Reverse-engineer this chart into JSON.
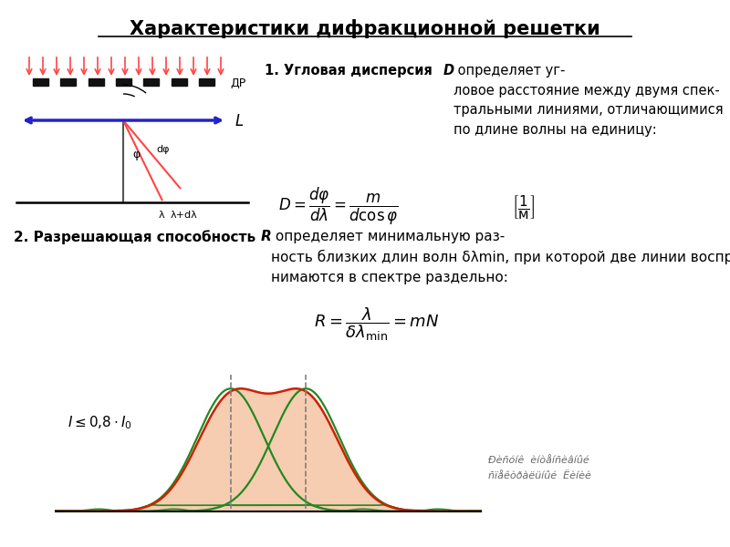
{
  "title": "Характеристики дифракционной решетки",
  "bg_color": "#ffffff",
  "light_color": "#ff4444",
  "arrow_color": "#2222cc",
  "grating_color": "#111111",
  "line_color": "#333333",
  "curve_fill_color": "#f5c8a8",
  "curve_green_color": "#228822",
  "curve_red_color": "#cc2200",
  "green_bg": "#e8f5e0",
  "label_dr": "ДР",
  "label_L": "L",
  "label_phi": "φ",
  "label_dphi": "dφ",
  "label_lambda": "λ",
  "label_dlambda": "λ+dλ"
}
